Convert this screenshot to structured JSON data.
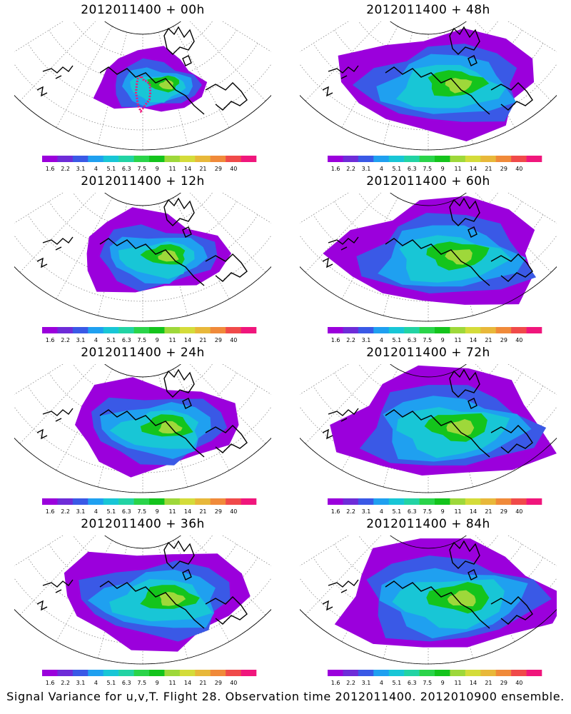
{
  "caption": "Signal Variance for u,v,T. Flight 28. Observation time 2012011400. 2012010900 ensemble.",
  "colorbar": {
    "labels": [
      "1.6",
      "2.2",
      "3.1",
      "4",
      "5.1",
      "6.3",
      "7.5",
      "9",
      "11",
      "14",
      "21",
      "29",
      "40"
    ],
    "colors": [
      "#9b00dc",
      "#6e2cd8",
      "#3a59e6",
      "#1fa0f0",
      "#18c6d6",
      "#22d3a4",
      "#2ad44a",
      "#14c41c",
      "#9ed83a",
      "#d4dc3a",
      "#e8b83a",
      "#f08a3a",
      "#f04a4a",
      "#f0167c"
    ]
  },
  "panels": [
    {
      "title": "2012011400 + 00h"
    },
    {
      "title": "2012011400 + 48h"
    },
    {
      "title": "2012011400 + 12h"
    },
    {
      "title": "2012011400 + 60h"
    },
    {
      "title": "2012011400 + 24h"
    },
    {
      "title": "2012011400 + 72h"
    },
    {
      "title": "2012011400 + 36h"
    },
    {
      "title": "2012011400 + 84h"
    }
  ]
}
